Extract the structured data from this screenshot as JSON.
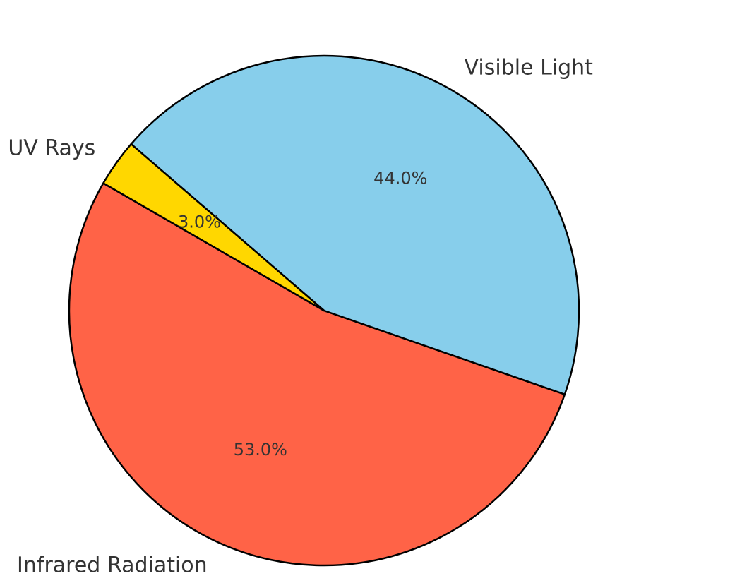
{
  "chart_data": {
    "type": "pie",
    "categories": [
      "Infrared Radiation",
      "Visible Light",
      "UV Rays"
    ],
    "values": [
      53.0,
      44.0,
      3.0
    ],
    "percent_labels": [
      "53.0%",
      "44.0%",
      "3.0%"
    ],
    "colors": [
      "#FF6347",
      "#87CEEB",
      "#FFD700"
    ],
    "start_angle_deg": 150,
    "direction": "counterclockwise",
    "legend": "none",
    "edge_color": "#000000",
    "text_color": "#333333"
  }
}
